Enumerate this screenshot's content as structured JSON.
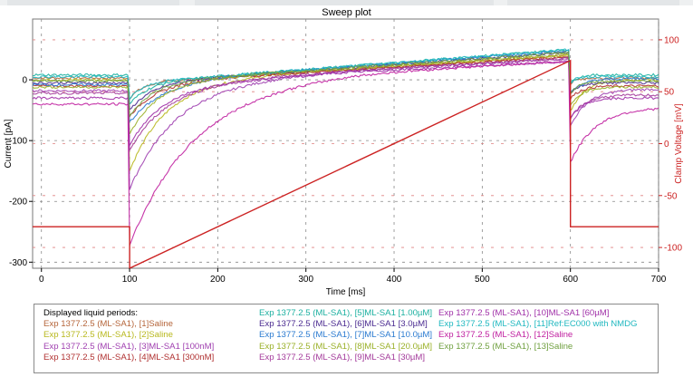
{
  "chart_data": {
    "type": "line",
    "title": "Sweep plot",
    "xlabel": "Time [ms]",
    "ylabel": "Current [pA]",
    "y2label": "Clamp Voltage [mV]",
    "xlim": [
      -10,
      700
    ],
    "ylim": [
      -310,
      100
    ],
    "y2lim": [
      -120,
      120
    ],
    "xticks": [
      "0",
      "100",
      "200",
      "300",
      "400",
      "500",
      "600",
      "700"
    ],
    "yticks": [
      "0",
      "-100",
      "-200",
      "-300"
    ],
    "y2ticks": [
      "100",
      "50",
      "0",
      "-50",
      "-100"
    ],
    "grid": true,
    "voltage_protocol": {
      "color": "#cc2222",
      "x": [
        -10,
        100,
        100,
        600,
        600,
        700
      ],
      "y": [
        -80,
        -80,
        -120,
        80,
        -80,
        -80
      ]
    },
    "series": [
      {
        "color": "#b5653a",
        "baseline": 3,
        "peak": -30,
        "tau": 15,
        "end": 40,
        "hold": 3
      },
      {
        "color": "#b8b81e",
        "baseline": 0,
        "peak": -150,
        "tau": 40,
        "end": 40,
        "hold": 0
      },
      {
        "color": "#a040b0",
        "baseline": -18,
        "peak": -175,
        "tau": 50,
        "end": 35,
        "hold": -15
      },
      {
        "color": "#b03030",
        "baseline": -10,
        "peak": -60,
        "tau": 30,
        "end": 38,
        "hold": -10
      },
      {
        "color": "#1bb0a0",
        "baseline": 8,
        "peak": -40,
        "tau": 20,
        "end": 50,
        "hold": 8
      },
      {
        "color": "#4a2a90",
        "baseline": -5,
        "peak": -50,
        "tau": 25,
        "end": 45,
        "hold": -5
      },
      {
        "color": "#2a7ad0",
        "baseline": -8,
        "peak": -70,
        "tau": 35,
        "end": 48,
        "hold": 2
      },
      {
        "color": "#9ab028",
        "baseline": -12,
        "peak": -90,
        "tau": 30,
        "end": 42,
        "hold": -12
      },
      {
        "color": "#a33a9a",
        "baseline": -22,
        "peak": -110,
        "tau": 40,
        "end": 35,
        "hold": -25
      },
      {
        "color": "#a030a8",
        "baseline": -30,
        "peak": -100,
        "tau": 35,
        "end": 30,
        "hold": -30
      },
      {
        "color": "#20b8c0",
        "baseline": 5,
        "peak": -30,
        "tau": 15,
        "end": 50,
        "hold": 5
      },
      {
        "color": "#c020a0",
        "baseline": -40,
        "peak": -260,
        "tau": 70,
        "end": 30,
        "hold": -45
      },
      {
        "color": "#70a040",
        "baseline": -2,
        "peak": -60,
        "tau": 25,
        "end": 45,
        "hold": -2
      }
    ],
    "legend": {
      "header": "Displayed liquid periods:",
      "entries": [
        {
          "label": "Exp 1377.2.5 (ML-SA1), [1]Saline",
          "color": "#b5653a"
        },
        {
          "label": "Exp 1377.2.5 (ML-SA1), [2]Saline",
          "color": "#b8b81e"
        },
        {
          "label": "Exp 1377.2.5 (ML-SA1), [3]ML-SA1 [100nM]",
          "color": "#a040b0"
        },
        {
          "label": "Exp 1377.2.5 (ML-SA1), [4]ML-SA1 [300nM]",
          "color": "#b03030"
        },
        {
          "label": "Exp 1377.2.5 (ML-SA1), [5]ML-SA1 [1.00µM]",
          "color": "#1bb0a0"
        },
        {
          "label": "Exp 1377.2.5 (ML-SA1), [6]ML-SA1 [3.0µM]",
          "color": "#4a2a90"
        },
        {
          "label": "Exp 1377.2.5 (ML-SA1), [7]ML-SA1 [10.0µM]",
          "color": "#2a7ad0"
        },
        {
          "label": "Exp 1377.2.5 (ML-SA1), [8]ML-SA1 [20.0µM]",
          "color": "#9ab028"
        },
        {
          "label": "Exp 1377.2.5 (ML-SA1), [9]ML-SA1 [30µM]",
          "color": "#a33a9a"
        },
        {
          "label": "Exp 1377.2.5 (ML-SA1), [10]ML-SA1 [60µM]",
          "color": "#a030a8"
        },
        {
          "label": "Exp 1377.2.5 (ML-SA1), [11]Ref:EC000 with NMDG",
          "color": "#20b8c0"
        },
        {
          "label": "Exp 1377.2.5 (ML-SA1), [12]Saline",
          "color": "#c020a0"
        },
        {
          "label": "Exp 1377.2.5 (ML-SA1), [13]Saline",
          "color": "#70a040"
        }
      ]
    }
  }
}
